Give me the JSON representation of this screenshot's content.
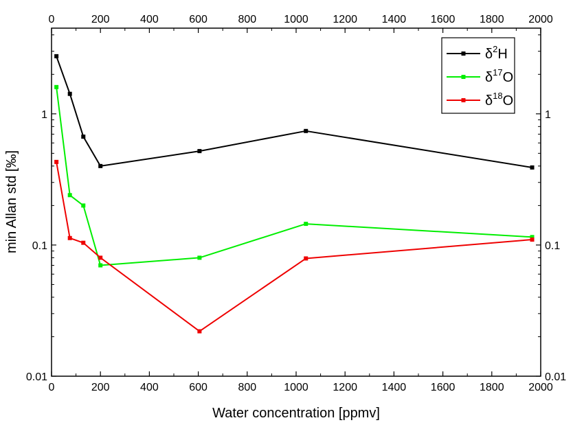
{
  "chart_data": {
    "type": "line",
    "xlabel": "Water concentration [ppmv]",
    "ylabel": "min Allan std [‰]",
    "xlim": [
      0,
      2000
    ],
    "ylim": [
      0.01,
      4.5
    ],
    "yscale": "log",
    "x_ticks": [
      0,
      200,
      400,
      600,
      800,
      1000,
      1200,
      1400,
      1600,
      1800,
      2000
    ],
    "x_tick_labels": [
      "0",
      "200",
      "400",
      "600",
      "800",
      "1000",
      "1200",
      "1400",
      "1600",
      "1800",
      "2000"
    ],
    "y_ticks": [
      0.01,
      0.1,
      1
    ],
    "y_tick_labels": [
      "0.01",
      "0.1",
      "1"
    ],
    "grid": false,
    "legend_position": "top-right",
    "x": [
      20,
      75,
      130,
      200,
      605,
      1040,
      1965
    ],
    "series": [
      {
        "name": "δ2H",
        "symbol": "δ",
        "sup": "2",
        "element": "H",
        "color": "#000000",
        "values": [
          2.75,
          1.42,
          0.67,
          0.4,
          0.52,
          0.74,
          0.39
        ]
      },
      {
        "name": "δ17O",
        "symbol": "δ",
        "sup": "17",
        "element": "O",
        "color": "#00ee00",
        "values": [
          1.6,
          0.24,
          0.2,
          0.07,
          0.08,
          0.145,
          0.115
        ]
      },
      {
        "name": "δ18O",
        "symbol": "δ",
        "sup": "18",
        "element": "O",
        "color": "#ee0000",
        "values": [
          0.43,
          0.113,
          0.104,
          0.08,
          0.022,
          0.079,
          0.11
        ]
      }
    ]
  }
}
